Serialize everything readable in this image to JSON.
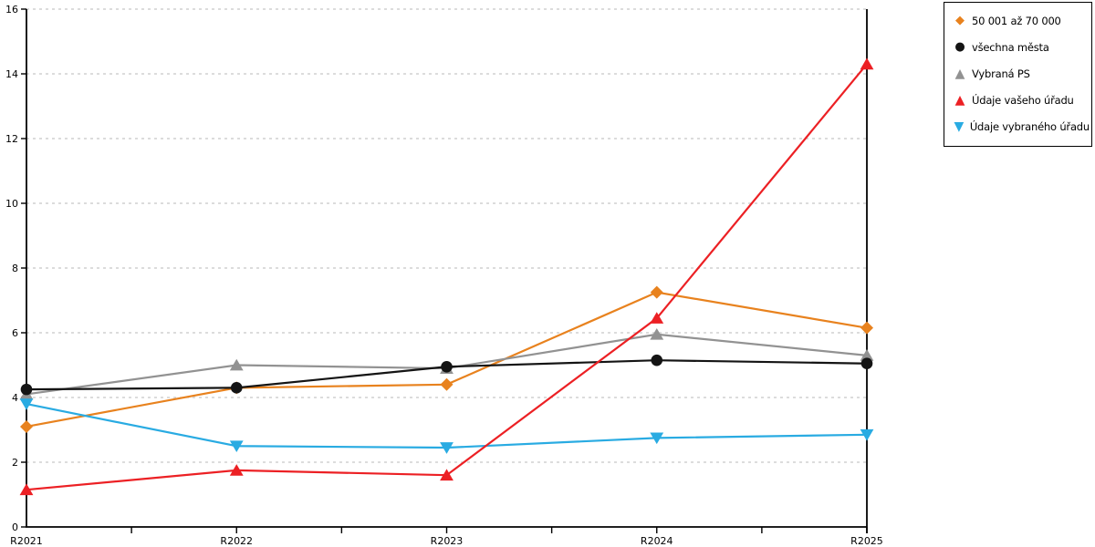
{
  "chart_data": {
    "type": "line",
    "title": "",
    "xlabel": "",
    "ylabel": "",
    "categories": [
      "R2021",
      "R2022",
      "R2023",
      "R2024",
      "R2025"
    ],
    "series": [
      {
        "name": "50 001 až 70 000",
        "marker": "diamond",
        "color": "#E8821E",
        "values": [
          3.1,
          4.3,
          4.4,
          7.25,
          6.15
        ]
      },
      {
        "name": "všechna města",
        "marker": "circle",
        "color": "#141414",
        "values": [
          4.25,
          4.3,
          4.95,
          5.15,
          5.05
        ]
      },
      {
        "name": "Vybraná PS",
        "marker": "triangle-up",
        "color": "#929292",
        "values": [
          4.1,
          5.0,
          4.9,
          5.95,
          5.3
        ]
      },
      {
        "name": "Údaje vašeho úřadu",
        "marker": "triangle-up",
        "color": "#EC2024",
        "values": [
          1.15,
          1.75,
          1.6,
          6.45,
          14.3
        ]
      },
      {
        "name": "Údaje vybraného úřadu",
        "marker": "triangle-down",
        "color": "#29ABE2",
        "values": [
          3.8,
          2.5,
          2.45,
          2.75,
          2.85
        ]
      }
    ],
    "ylim": [
      0,
      16
    ],
    "ytick_step": 2,
    "ytick_labels": [
      "0",
      "2",
      "4",
      "6",
      "8",
      "10",
      "12",
      "14",
      "16"
    ],
    "grid": "horizontal-dashed",
    "legend_position": "top-right",
    "marker_glyphs": {
      "diamond": "◆",
      "circle": "●",
      "triangle-up": "▲",
      "triangle-down": "▼"
    },
    "colors": {
      "grid": "#C8C8C8",
      "axis": "#000000",
      "background": "#FFFFFF"
    }
  }
}
